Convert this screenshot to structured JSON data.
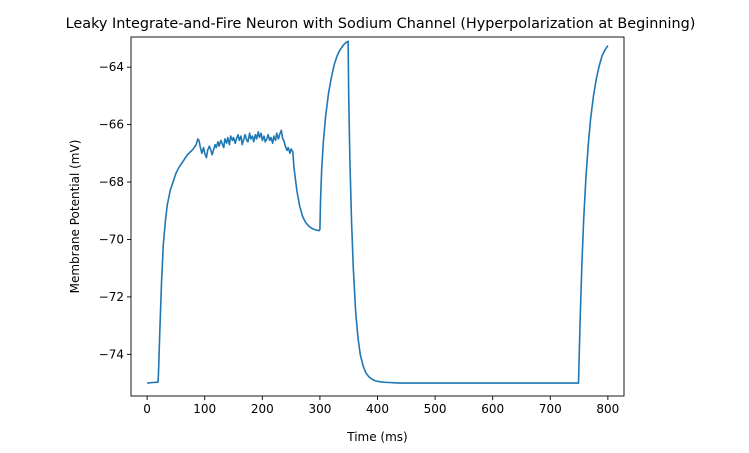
{
  "chart_data": {
    "type": "line",
    "title": "Leaky Integrate-and-Fire Neuron with Sodium Channel (Hyperpolarization at Beginning)",
    "xlabel": "Time (ms)",
    "ylabel": "Membrane Potential (mV)",
    "xlim": [
      -28,
      828
    ],
    "ylim": [
      -75.45,
      -62.95
    ],
    "xticks": [
      0,
      100,
      200,
      300,
      400,
      500,
      600,
      700,
      800
    ],
    "yticks": [
      -74,
      -72,
      -70,
      -68,
      -66,
      -64
    ],
    "grid": false,
    "series_color": "#1f77b4",
    "series": [
      {
        "x": [
          0,
          10,
          19,
          20,
          22,
          25,
          28,
          32,
          35,
          40,
          45,
          50,
          55,
          60,
          65,
          70,
          75,
          80,
          85,
          88,
          90,
          92,
          95,
          98,
          100,
          103,
          105,
          108,
          110,
          113,
          115,
          118,
          120,
          123,
          125,
          128,
          130,
          133,
          135,
          138,
          140,
          143,
          145,
          148,
          150,
          153,
          155,
          158,
          160,
          163,
          165,
          168,
          170,
          173,
          175,
          178,
          180,
          183,
          185,
          188,
          190,
          193,
          195,
          198,
          200,
          203,
          205,
          208,
          210,
          213,
          215,
          218,
          220,
          223,
          225,
          228,
          230,
          233,
          235,
          238,
          240,
          243,
          245,
          248,
          250,
          253,
          255,
          260,
          265,
          270,
          275,
          280,
          285,
          290,
          295,
          299,
          300,
          301,
          303,
          306,
          310,
          315,
          320,
          325,
          330,
          335,
          340,
          345,
          349,
          350,
          352,
          355,
          358,
          362,
          366,
          370,
          375,
          380,
          385,
          390,
          395,
          400,
          410,
          420,
          430,
          440,
          450,
          500,
          600,
          700,
          749,
          750,
          752,
          755,
          758,
          762,
          766,
          770,
          775,
          780,
          785,
          790,
          795,
          800
        ],
        "y": [
          -75.0,
          -74.98,
          -74.97,
          -74.5,
          -73.2,
          -71.5,
          -70.2,
          -69.3,
          -68.8,
          -68.3,
          -68.0,
          -67.7,
          -67.5,
          -67.35,
          -67.2,
          -67.05,
          -66.95,
          -66.85,
          -66.7,
          -66.5,
          -66.55,
          -66.75,
          -67.0,
          -66.8,
          -67.0,
          -67.15,
          -66.9,
          -66.75,
          -66.85,
          -67.05,
          -66.9,
          -66.7,
          -66.8,
          -66.6,
          -66.75,
          -66.55,
          -66.65,
          -66.8,
          -66.5,
          -66.65,
          -66.45,
          -66.7,
          -66.4,
          -66.55,
          -66.45,
          -66.65,
          -66.5,
          -66.35,
          -66.55,
          -66.4,
          -66.7,
          -66.5,
          -66.35,
          -66.55,
          -66.6,
          -66.3,
          -66.5,
          -66.4,
          -66.6,
          -66.35,
          -66.5,
          -66.25,
          -66.45,
          -66.3,
          -66.55,
          -66.4,
          -66.6,
          -66.5,
          -66.35,
          -66.55,
          -66.45,
          -66.65,
          -66.4,
          -66.55,
          -66.3,
          -66.5,
          -66.35,
          -66.2,
          -66.45,
          -66.6,
          -66.75,
          -66.9,
          -66.8,
          -67.0,
          -66.85,
          -66.95,
          -67.5,
          -68.3,
          -68.85,
          -69.2,
          -69.4,
          -69.52,
          -69.6,
          -69.65,
          -69.68,
          -69.69,
          -69.65,
          -68.7,
          -67.6,
          -66.6,
          -65.7,
          -64.9,
          -64.35,
          -63.9,
          -63.6,
          -63.4,
          -63.25,
          -63.15,
          -63.1,
          -65.0,
          -67.2,
          -69.4,
          -71.0,
          -72.5,
          -73.4,
          -74.0,
          -74.4,
          -74.65,
          -74.78,
          -74.86,
          -74.91,
          -74.94,
          -74.97,
          -74.98,
          -74.99,
          -75.0,
          -75.0,
          -75.0,
          -75.0,
          -75.0,
          -75.0,
          -74.2,
          -72.7,
          -70.8,
          -69.3,
          -67.8,
          -66.7,
          -65.8,
          -65.0,
          -64.4,
          -63.95,
          -63.6,
          -63.4,
          -63.25
        ]
      }
    ]
  }
}
